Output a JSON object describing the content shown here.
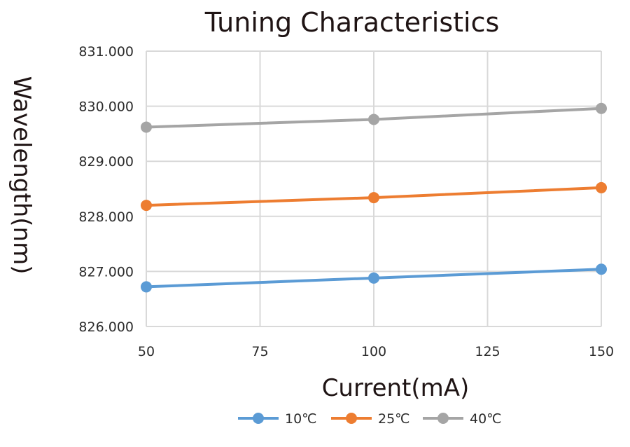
{
  "chart_data": {
    "type": "line",
    "title": "Tuning Characteristics",
    "xlabel": "Current(mA)",
    "ylabel": "Wavelength(nm)",
    "xlim": [
      50,
      150
    ],
    "ylim": [
      826,
      831
    ],
    "x_ticks": [
      50,
      75,
      100,
      125,
      150
    ],
    "x_tick_labels": [
      "50",
      "75",
      "100",
      "125",
      "150"
    ],
    "y_ticks": [
      826,
      827,
      828,
      829,
      830,
      831
    ],
    "y_tick_labels": [
      "826.000",
      "827.000",
      "828.000",
      "829.000",
      "830.000",
      "831.000"
    ],
    "grid": true,
    "legend_position": "bottom",
    "series": [
      {
        "name": "10℃",
        "color": "#5b9bd5",
        "x": [
          50,
          100,
          150
        ],
        "values": [
          826.72,
          826.88,
          827.04
        ]
      },
      {
        "name": "25℃",
        "color": "#ed7d31",
        "x": [
          50,
          100,
          150
        ],
        "values": [
          828.2,
          828.34,
          828.52
        ]
      },
      {
        "name": "40℃",
        "color": "#a5a5a5",
        "x": [
          50,
          100,
          150
        ],
        "values": [
          829.62,
          829.76,
          829.96
        ]
      }
    ]
  }
}
